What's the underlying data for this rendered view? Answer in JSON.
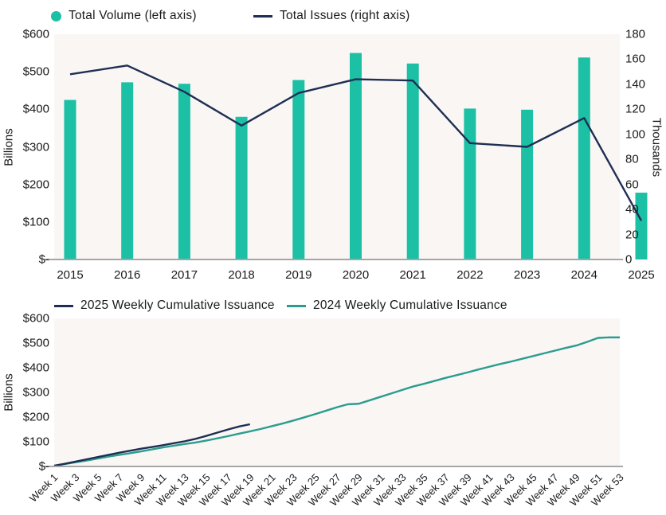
{
  "colors": {
    "teal": "#1bc0a5",
    "teal_line_2024": "#2a9d8e",
    "navy": "#1e2f54",
    "plot_bg": "#faf6f4",
    "axis_line": "#a6a6a6",
    "text": "#1a1a1a"
  },
  "chart_data": [
    {
      "type": "combo",
      "title": "",
      "categories": [
        "2015",
        "2016",
        "2017",
        "2018",
        "2019",
        "2020",
        "2021",
        "2022",
        "2023",
        "2024",
        "2025"
      ],
      "series": [
        {
          "name": "Total Volume (left axis)",
          "type": "bar",
          "axis": "left",
          "values": [
            425,
            472,
            468,
            380,
            478,
            550,
            522,
            402,
            399,
            538,
            178
          ]
        },
        {
          "name": "Total Issues (right axis)",
          "type": "line",
          "axis": "right",
          "values": [
            148,
            155,
            134,
            107,
            133,
            144,
            143,
            93,
            90,
            113,
            31
          ]
        }
      ],
      "left_axis": {
        "title": "Billions",
        "ticks": [
          "$600",
          "$500",
          "$400",
          "$300",
          "$200",
          "$100",
          "$-"
        ],
        "min": 0,
        "max": 600
      },
      "right_axis": {
        "title": "Thousands",
        "ticks": [
          "180",
          "160",
          "140",
          "120",
          "100",
          "80",
          "60",
          "40",
          "20",
          "0"
        ],
        "min": 0,
        "max": 180
      },
      "legend_position": "top",
      "grid": false
    },
    {
      "type": "line",
      "title": "",
      "x_count": 53,
      "x_tick_labels": [
        "Week 1",
        "Week 3",
        "Week 5",
        "Week 7",
        "Week 9",
        "Week 11",
        "Week 13",
        "Week 15",
        "Week 17",
        "Week 19",
        "Week 21",
        "Week 23",
        "Week 25",
        "Week 27",
        "Week 29",
        "Week 31",
        "Week 33",
        "Week 35",
        "Week 37",
        "Week 39",
        "Week 41",
        "Week 43",
        "Week 45",
        "Week 47",
        "Week 49",
        "Week 51",
        "Week 53"
      ],
      "series": [
        {
          "name": "2025 Weekly Cumulative Issuance",
          "color_key": "navy",
          "values": [
            3,
            11,
            20,
            29,
            38,
            47,
            56,
            64,
            72,
            79,
            86,
            94,
            102,
            112,
            124,
            137,
            150,
            162,
            171
          ]
        },
        {
          "name": "2024 Weekly Cumulative Issuance",
          "color_key": "teal_line_2024",
          "values": [
            3,
            10,
            17,
            24,
            32,
            40,
            47,
            54,
            61,
            69,
            77,
            84,
            91,
            97,
            105,
            114,
            123,
            133,
            142,
            152,
            163,
            174,
            186,
            199,
            212,
            226,
            240,
            252,
            254,
            268,
            282,
            296,
            310,
            324,
            335,
            347,
            359,
            370,
            381,
            393,
            404,
            415,
            425,
            436,
            447,
            458,
            469,
            480,
            490,
            505,
            521,
            523,
            523
          ]
        }
      ],
      "left_axis": {
        "title": "Billions",
        "ticks": [
          "$600",
          "$500",
          "$400",
          "$300",
          "$200",
          "$100",
          "$-"
        ],
        "min": 0,
        "max": 600
      },
      "legend_position": "top",
      "grid": false
    }
  ]
}
